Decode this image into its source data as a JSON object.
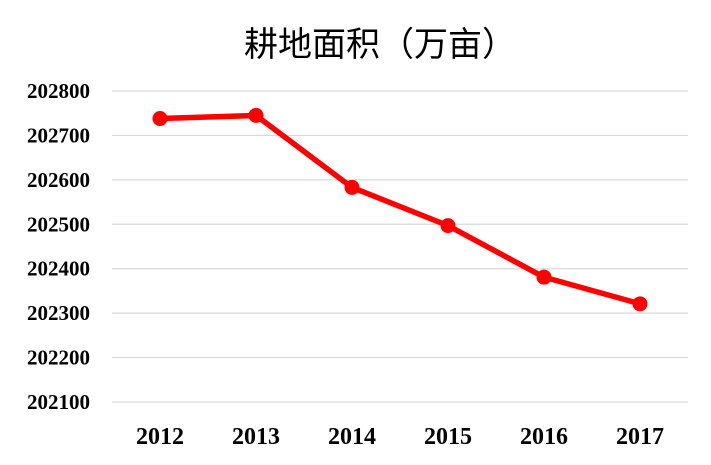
{
  "chart_data": {
    "type": "line",
    "title": "耕地面积（万亩）",
    "xlabel": "",
    "ylabel": "",
    "categories": [
      "2012",
      "2013",
      "2014",
      "2015",
      "2016",
      "2017"
    ],
    "series": [
      {
        "values": [
          202738,
          202745,
          202583,
          202497,
          202381,
          202321
        ]
      }
    ],
    "ylim": [
      202100,
      202800
    ],
    "yticks": [
      202800,
      202700,
      202600,
      202500,
      202400,
      202300,
      202200,
      202100
    ],
    "grid": true,
    "legend": "none",
    "line_color": "#ff0000",
    "marker": "circle"
  }
}
